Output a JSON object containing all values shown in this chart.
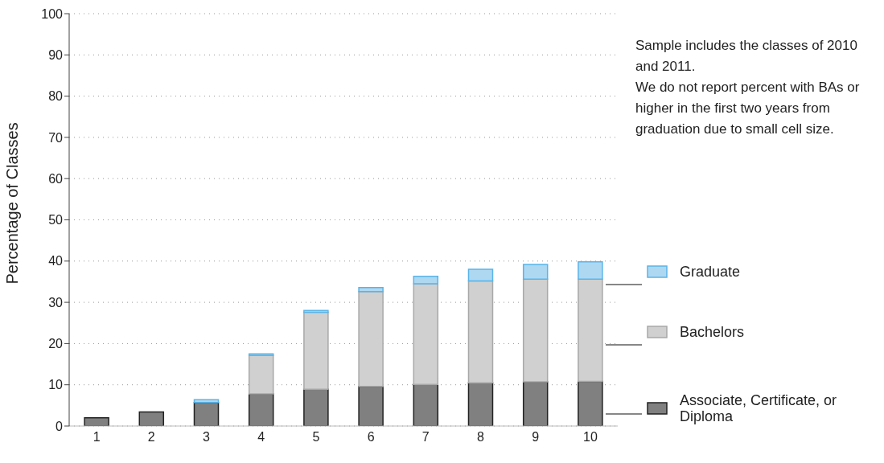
{
  "chart_data": {
    "type": "bar",
    "stacked": true,
    "ylabel": "Percentage of Classes",
    "categories": [
      "1",
      "2",
      "3",
      "4",
      "5",
      "6",
      "7",
      "8",
      "9",
      "10"
    ],
    "series": [
      {
        "name": "Associate, Certificate, or Diploma",
        "color": "#808080",
        "values": [
          2.0,
          3.4,
          5.7,
          7.8,
          8.9,
          9.6,
          10.1,
          10.5,
          10.7,
          10.8
        ]
      },
      {
        "name": "Bachelors",
        "color": "#d0d0d0",
        "values": [
          null,
          null,
          0,
          9.3,
          18.7,
          23.0,
          24.4,
          24.7,
          24.9,
          24.8
        ]
      },
      {
        "name": "Graduate",
        "color": "#aed8f2",
        "values": [
          null,
          null,
          0.7,
          0.4,
          0.4,
          1.0,
          1.8,
          2.8,
          3.6,
          4.2
        ]
      }
    ],
    "ylim": [
      0,
      100
    ],
    "yticks": [
      0,
      10,
      20,
      30,
      40,
      50,
      60,
      70,
      80,
      90,
      100
    ],
    "grid": "y",
    "legend": "right",
    "annotations": [
      "Sample includes the classes of 2010 and 2011.\nWe do not report percent with BAs or higher in the first two years from graduation due to small cell size."
    ]
  }
}
